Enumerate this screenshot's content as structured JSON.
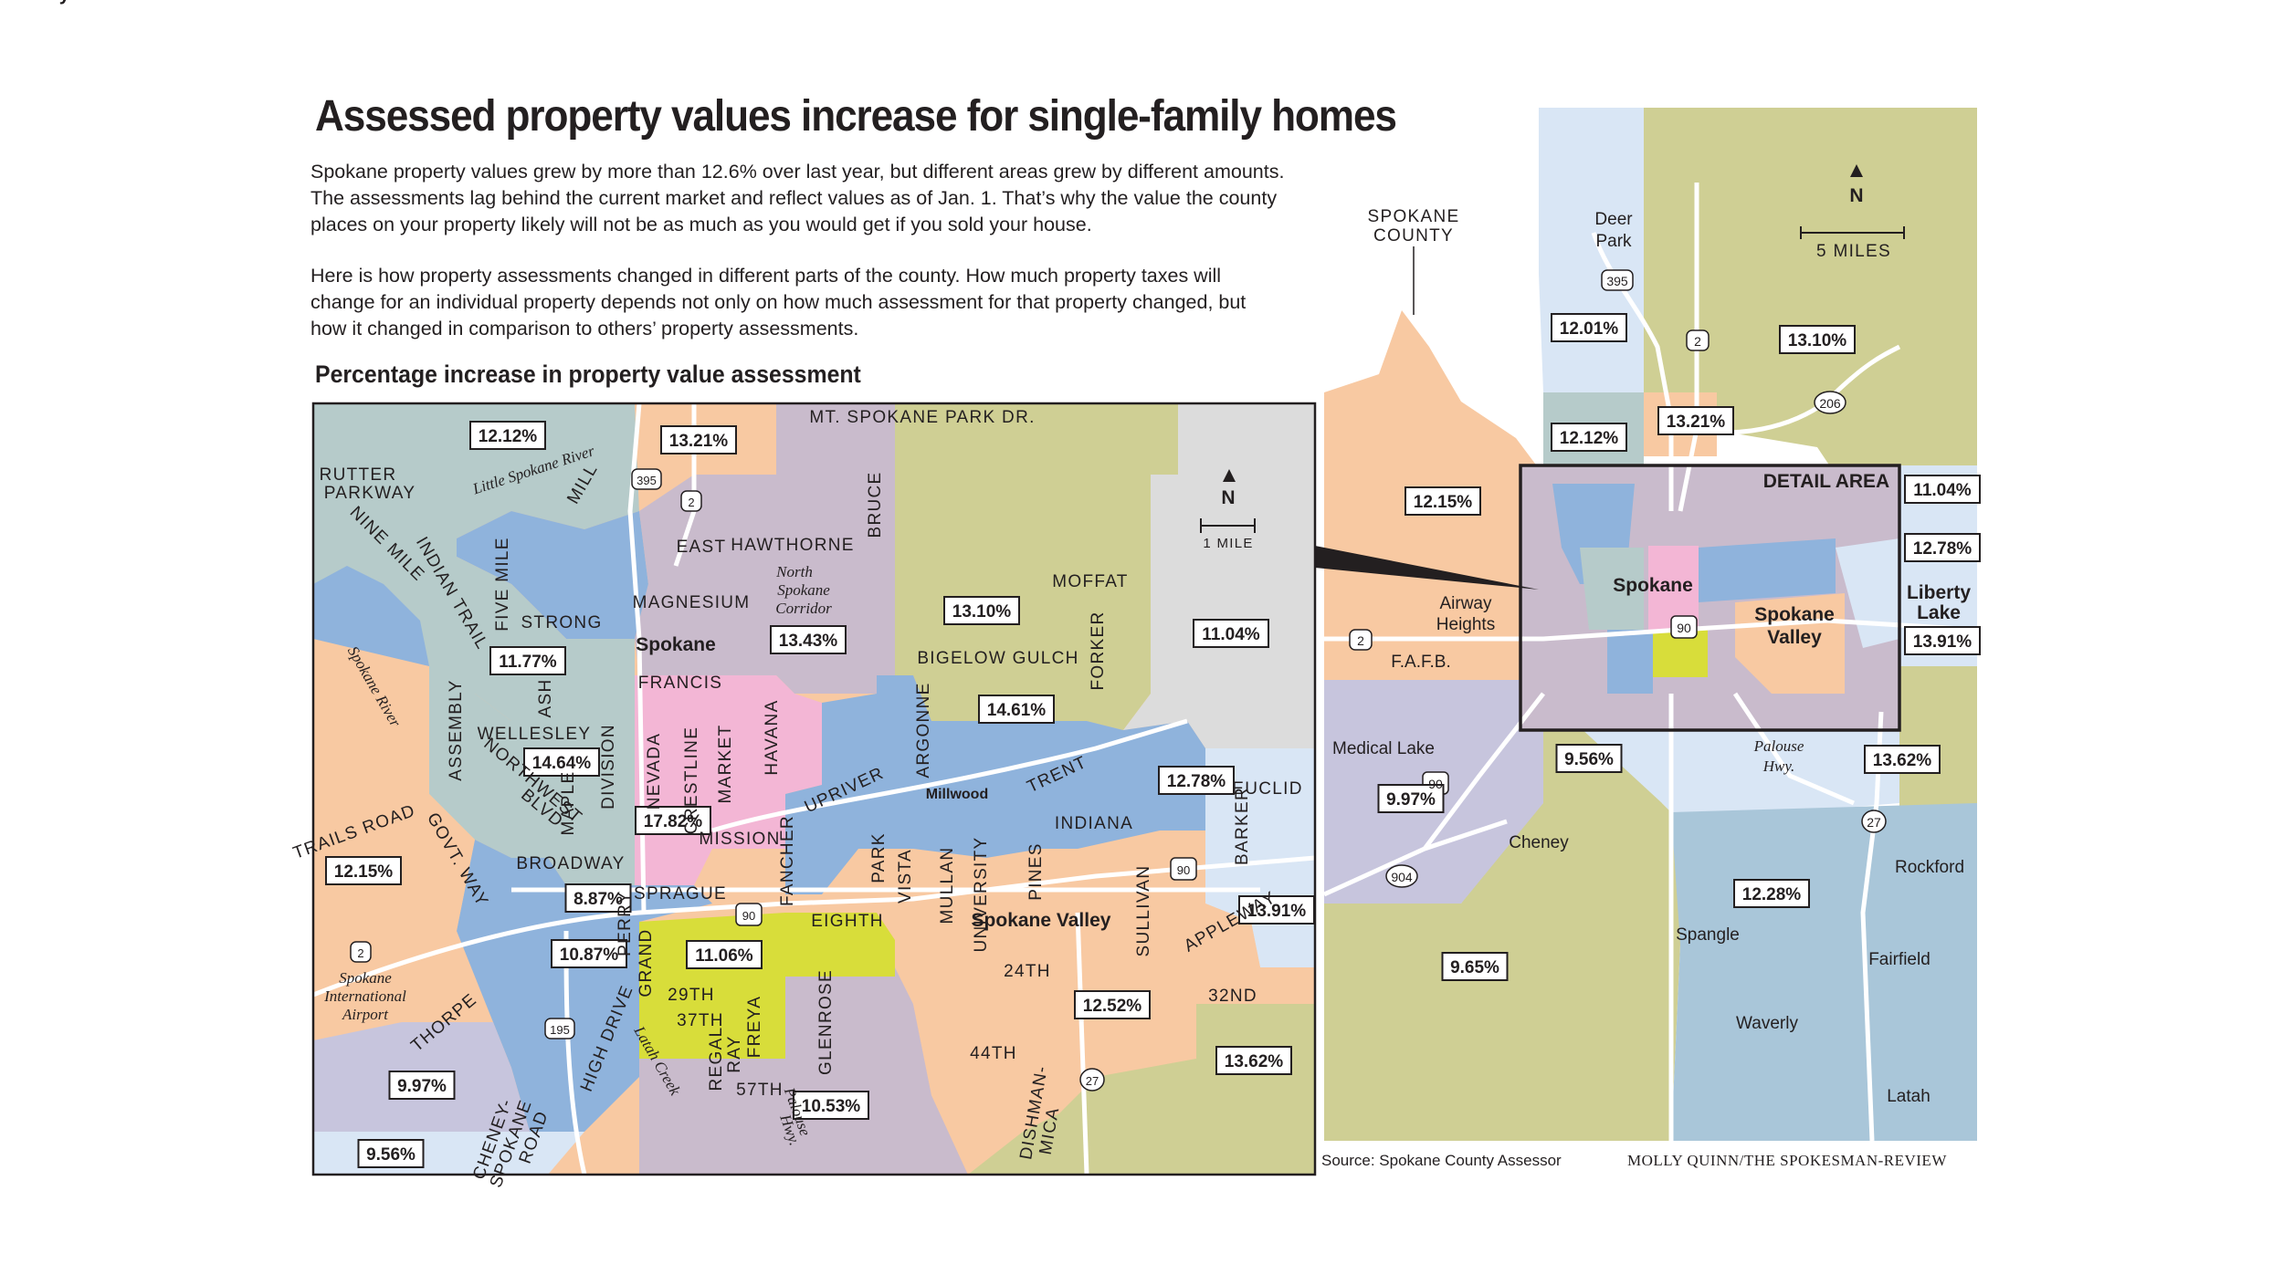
{
  "header": {
    "title": "Assessed property values increase for single-family homes",
    "paragraph_1_lines": [
      "Spokane property values grew by more than 12.6% over last year, but different areas grew by different amounts.",
      "The assessments lag behind the current market and reflect values as of Jan. 1. That’s why the value the county",
      "places on your property likely will not be as much as you would get if you sold your house."
    ],
    "paragraph_2_lines": [
      "Here is how property assessments changed in different parts of the county. How much property taxes will",
      "change for an individual property depends not only on how much assessment for that property changed, but",
      "how it changed in comparison to others’ property assessments."
    ],
    "subtitle": "Percentage increase in property value assessment"
  },
  "colors": {
    "blue": "#8fb3dc",
    "lightblue": "#d9e6f5",
    "teal": "#b6cbca",
    "peach": "#f8c9a2",
    "mauve": "#c9bbcc",
    "lavender": "#c7c5dd",
    "olive": "#cfcf94",
    "gray": "#dcdcdc",
    "pink": "#f3b6d5",
    "yellow": "#d8dd3a",
    "steel": "#a9c6d9",
    "border": "#231f20"
  },
  "detail_map": {
    "north_label": "N",
    "scale_label": "1 MILE",
    "percentages": [
      "12.12%",
      "13.21%",
      "11.77%",
      "14.64%",
      "13.43%",
      "13.10%",
      "11.04%",
      "14.61%",
      "12.78%",
      "17.82%",
      "8.87%",
      "12.15%",
      "10.87%",
      "11.06%",
      "13.91%",
      "12.52%",
      "13.62%",
      "9.97%",
      "10.53%",
      "9.56%"
    ],
    "places": [
      "Spokane",
      "Spokane Valley",
      "Millwood"
    ],
    "street_labels": [
      "MT. SPOKANE PARK DR.",
      "RUTTER",
      "PARKWAY",
      "EAST",
      "HAWTHORNE",
      "MAGNESIUM",
      "BRUCE",
      "MOFFAT",
      "FRANCIS",
      "BIGELOW GULCH",
      "FORKER",
      "STRONG",
      "WELLESLEY",
      "EUCLID",
      "UPRIVER",
      "ARGONNE",
      "TRENT",
      "INDIANA",
      "BROADWAY",
      "SPRAGUE",
      "EIGHTH",
      "MISSION",
      "29TH",
      "37TH",
      "57TH",
      "24TH",
      "44TH",
      "32ND",
      "THORPE",
      "HIGH DRIVE",
      "NINE MILE",
      "INDIAN TRAIL",
      "FIVE MILE",
      "ASSEMBLY",
      "ASH",
      "DIVISION",
      "MAPLE",
      "NORTHWEST",
      "BLVD",
      "NEVADA",
      "CRESTLINE",
      "MARKET",
      "HAVANA",
      "FANCHER",
      "PARK",
      "VISTA",
      "MULLAN",
      "UNIVERSITY",
      "PINES",
      "SULLIVAN",
      "BARKER",
      "APPLEWAY",
      "GRAND",
      "PERRY",
      "REGAL",
      "RAY",
      "FREYA",
      "GLENROSE",
      "TRAILS ROAD",
      "GOVT. WAY",
      "CHENEY-",
      "SPOKANE",
      "ROAD",
      "DISHMAN-",
      "MICA",
      "MILL"
    ],
    "italic_labels": [
      "Little Spokane River",
      "Spokane River",
      "Latah Creek",
      "North",
      "Spokane",
      "Corridor",
      "Palouse",
      "Hwy.",
      "Spokane",
      "International",
      "Airport"
    ],
    "shields": [
      "395",
      "2",
      "90",
      "195",
      "27"
    ]
  },
  "overview_map": {
    "north_label": "N",
    "scale_label": "5 MILES",
    "detail_area_label": "DETAIL AREA",
    "county_label": [
      "SPOKANE",
      "COUNTY"
    ],
    "percentages": [
      "12.01%",
      "13.10%",
      "12.12%",
      "13.21%",
      "12.15%",
      "11.04%",
      "12.78%",
      "13.91%",
      "9.56%",
      "13.62%",
      "9.97%",
      "12.28%",
      "9.65%"
    ],
    "places": [
      "Deer",
      "Park",
      "Airway",
      "Heights",
      "F.A.F.B.",
      "Medical Lake",
      "Cheney",
      "Spangle",
      "Rockford",
      "Fairfield",
      "Waverly",
      "Latah"
    ],
    "bold_places": [
      "Spokane",
      "Spokane",
      "Valley",
      "Liberty",
      "Lake"
    ],
    "italic_labels": [
      "Palouse",
      "Hwy."
    ],
    "shields": [
      "395",
      "2",
      "206",
      "2",
      "90",
      "90",
      "904",
      "27"
    ]
  },
  "footer": {
    "source": "Source: Spokane County Assessor",
    "credit": "MOLLY QUINN/THE SPOKESMAN-REVIEW"
  }
}
